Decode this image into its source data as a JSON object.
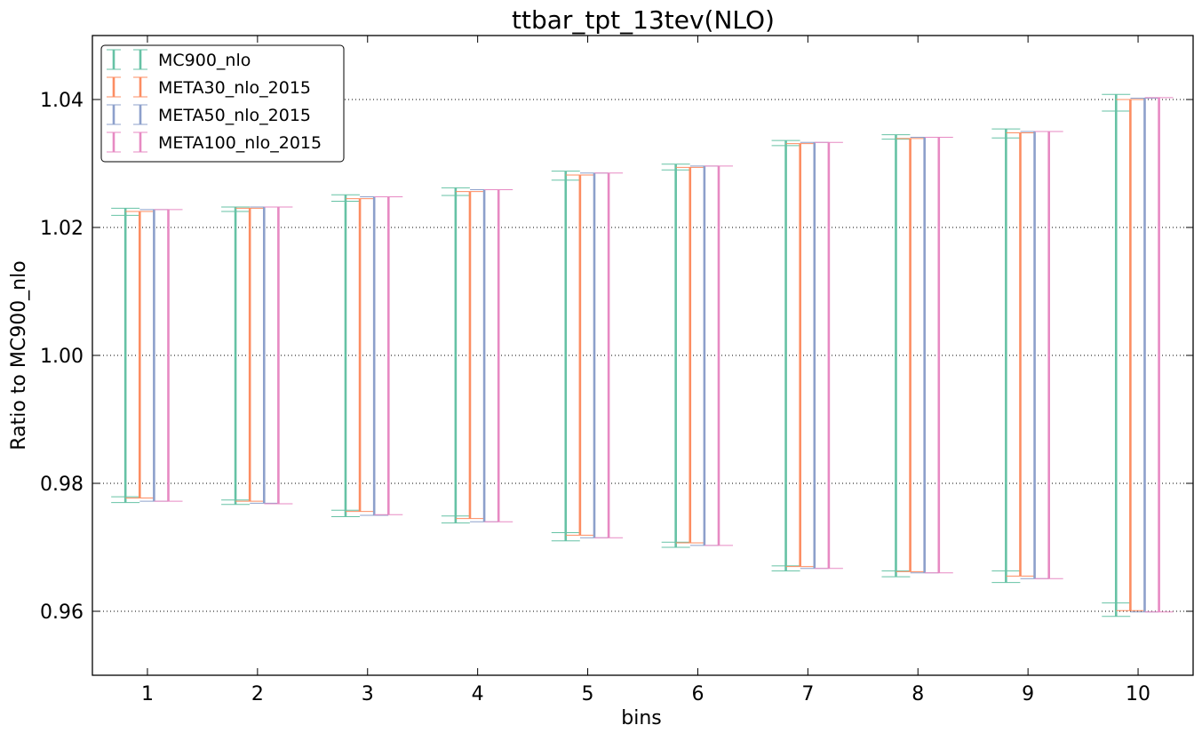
{
  "chart_data": {
    "type": "errorbar",
    "title": "ttbar_tpt_13tev(NLO)",
    "xlabel": "bins",
    "ylabel": "Ratio to MC900_nlo",
    "xlim": [
      0.5,
      10.5
    ],
    "ylim": [
      0.95,
      1.05
    ],
    "x_ticks": [
      "1",
      "2",
      "3",
      "4",
      "5",
      "6",
      "7",
      "8",
      "9",
      "10"
    ],
    "y_ticks": [
      "0.96",
      "0.98",
      "1.00",
      "1.02",
      "1.04"
    ],
    "y_tick_values": [
      0.96,
      0.98,
      1.0,
      1.02,
      1.04
    ],
    "grid": "horizontal dotted",
    "legend_position": "top-left",
    "series": [
      {
        "name": "MC900_nlo",
        "color": "#66c2a5",
        "outer_low": [
          0.977,
          0.9767,
          0.9748,
          0.9738,
          0.971,
          0.97,
          0.9663,
          0.9654,
          0.9645,
          0.9592
        ],
        "outer_high": [
          1.023,
          1.0232,
          1.0251,
          1.0262,
          1.0288,
          1.0299,
          1.0336,
          1.0345,
          1.0354,
          1.0408
        ],
        "inner_low": [
          0.9779,
          0.9774,
          0.9758,
          0.9749,
          0.9723,
          0.9708,
          0.9671,
          0.9663,
          0.9663,
          0.9613
        ],
        "inner_high": [
          1.0219,
          1.0225,
          1.0241,
          1.025,
          1.0274,
          1.029,
          1.0328,
          1.0338,
          1.034,
          1.0382
        ]
      },
      {
        "name": "META30_nlo_2015",
        "color": "#fc8d62",
        "low": [
          0.9777,
          0.9772,
          0.9756,
          0.9745,
          0.9719,
          0.9707,
          0.967,
          0.9662,
          0.9655,
          0.9601
        ],
        "high": [
          1.0225,
          1.023,
          1.0245,
          1.0256,
          1.0282,
          1.0294,
          1.0331,
          1.0339,
          1.0348,
          1.04
        ]
      },
      {
        "name": "META50_nlo_2015",
        "color": "#8da0cb",
        "low": [
          0.9772,
          0.9769,
          0.975,
          0.974,
          0.9715,
          0.9703,
          0.9667,
          0.966,
          0.9651,
          0.9599
        ],
        "high": [
          1.0228,
          1.0232,
          1.0248,
          1.0259,
          1.0285,
          1.0296,
          1.0333,
          1.0341,
          1.035,
          1.0402
        ]
      },
      {
        "name": "META100_nlo_2015",
        "color": "#e78ac3",
        "low": [
          0.9772,
          0.9768,
          0.9751,
          0.974,
          0.9715,
          0.9703,
          0.9667,
          0.966,
          0.9651,
          0.9599
        ],
        "high": [
          1.0228,
          1.0232,
          1.0248,
          1.0259,
          1.0285,
          1.0296,
          1.0333,
          1.0341,
          1.035,
          1.0403
        ]
      }
    ]
  }
}
